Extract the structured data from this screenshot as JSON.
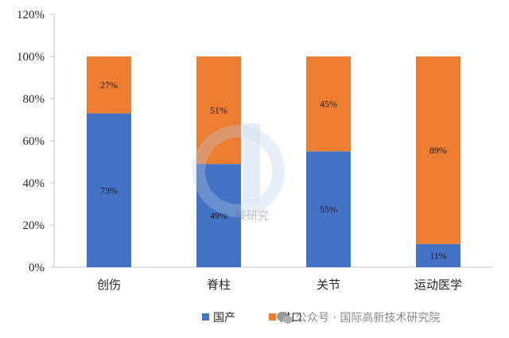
{
  "chart_data": {
    "type": "bar",
    "stacked": true,
    "categories": [
      "创伤",
      "脊柱",
      "关节",
      "运动医学"
    ],
    "series": [
      {
        "name": "国产",
        "values": [
          73,
          49,
          55,
          11
        ],
        "color": "#4472C4"
      },
      {
        "name": "进口",
        "values": [
          27,
          51,
          45,
          89
        ],
        "color": "#ED7D31"
      }
    ],
    "data_labels": [
      [
        "73%",
        "49%",
        "55%",
        "11%"
      ],
      [
        "27%",
        "51%",
        "45%",
        "89%"
      ]
    ],
    "ylim": [
      0,
      120
    ],
    "yticks": [
      0,
      20,
      40,
      60,
      80,
      100,
      120
    ],
    "ytick_labels": [
      "0%",
      "20%",
      "40%",
      "60%",
      "80%",
      "100%",
      "120%"
    ],
    "legend_position": "bottom",
    "grid": false
  },
  "watermark": {
    "text": "公众号 · 国际高新技术研究院",
    "logo_text": "技研究",
    "icon": "wechat-icon"
  }
}
